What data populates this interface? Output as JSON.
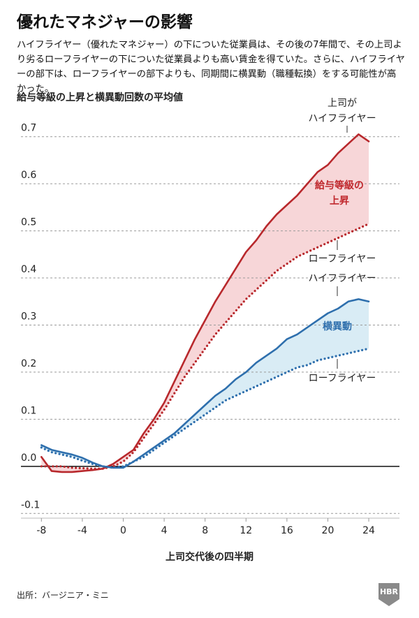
{
  "chart_data": {
    "type": "line",
    "title": "優れたマネジャーの影響",
    "subtitle": "ハイフライヤー（優れたマネジャー）の下についた従業員は、その後の7年間で、その上司より劣るローフライヤーの下についた従業員よりも高い賃金を得ていた。さらに、ハイフライヤーの部下は、ローフライヤーの部下よりも、同期間に横異動（職種転換）をする可能性が高かった。",
    "chart_title": "給与等級の上昇と横異動回数の平均値",
    "xlabel": "上司交代後の四半期",
    "source": "出所：バージニア・ミニ",
    "logo": "HBR",
    "annotation": "上司が",
    "x": [
      -8,
      -7,
      -6,
      -5,
      -4,
      -3,
      -2,
      -1,
      0,
      1,
      2,
      3,
      4,
      5,
      6,
      7,
      8,
      9,
      10,
      11,
      12,
      13,
      14,
      15,
      16,
      17,
      18,
      19,
      20,
      21,
      22,
      23,
      24
    ],
    "series": [
      {
        "name": "ハイフライヤー",
        "color": "#b8282c",
        "style": "solid",
        "values": [
          0.02,
          -0.01,
          -0.012,
          -0.012,
          -0.01,
          -0.008,
          -0.005,
          0.005,
          0.02,
          0.035,
          0.07,
          0.1,
          0.135,
          0.18,
          0.225,
          0.27,
          0.31,
          0.35,
          0.385,
          0.42,
          0.455,
          0.48,
          0.51,
          0.535,
          0.555,
          0.575,
          0.6,
          0.625,
          0.64,
          0.665,
          0.685,
          0.705,
          0.69
        ]
      },
      {
        "name": "ローフライヤー",
        "color": "#b8282c",
        "style": "dotted",
        "values": [
          0.0,
          0.0,
          0.0,
          -0.003,
          -0.004,
          -0.005,
          -0.005,
          0.0,
          0.01,
          0.03,
          0.06,
          0.09,
          0.12,
          0.155,
          0.19,
          0.22,
          0.25,
          0.28,
          0.305,
          0.33,
          0.355,
          0.375,
          0.395,
          0.415,
          0.43,
          0.445,
          0.455,
          0.465,
          0.475,
          0.485,
          0.495,
          0.505,
          0.515
        ]
      },
      {
        "name": "ハイフライヤー",
        "color": "#2e6fad",
        "style": "solid",
        "values": [
          0.045,
          0.035,
          0.03,
          0.025,
          0.018,
          0.008,
          0.0,
          -0.003,
          -0.003,
          0.01,
          0.025,
          0.04,
          0.055,
          0.07,
          0.09,
          0.11,
          0.13,
          0.15,
          0.165,
          0.185,
          0.2,
          0.22,
          0.235,
          0.25,
          0.27,
          0.28,
          0.295,
          0.31,
          0.325,
          0.335,
          0.35,
          0.355,
          0.35
        ]
      },
      {
        "name": "ローフライヤー",
        "color": "#2e6fad",
        "style": "dotted",
        "values": [
          0.04,
          0.03,
          0.025,
          0.02,
          0.012,
          0.005,
          0.0,
          -0.003,
          0.0,
          0.01,
          0.02,
          0.035,
          0.05,
          0.065,
          0.08,
          0.095,
          0.11,
          0.125,
          0.14,
          0.15,
          0.16,
          0.17,
          0.18,
          0.19,
          0.2,
          0.21,
          0.215,
          0.225,
          0.23,
          0.235,
          0.24,
          0.245,
          0.25
        ]
      }
    ],
    "bands": [
      {
        "label": [
          "給与等級の",
          "上昇"
        ],
        "color": "#c0282d",
        "fill": "#f7d6d8"
      },
      {
        "label": [
          "横異動"
        ],
        "color": "#2e6fad",
        "fill": "#d9ecf5"
      }
    ],
    "xlim": [
      -10,
      27
    ],
    "xticks": [
      -8,
      -4,
      0,
      4,
      8,
      12,
      16,
      20,
      24
    ],
    "ylim": [
      -0.11,
      0.75
    ],
    "yticks": [
      -0.1,
      {
        "value": 0,
        "label": "0.0"
      },
      0.1,
      0.2,
      0.3,
      0.4,
      0.5,
      0.6,
      0.7
    ],
    "grid": true
  }
}
